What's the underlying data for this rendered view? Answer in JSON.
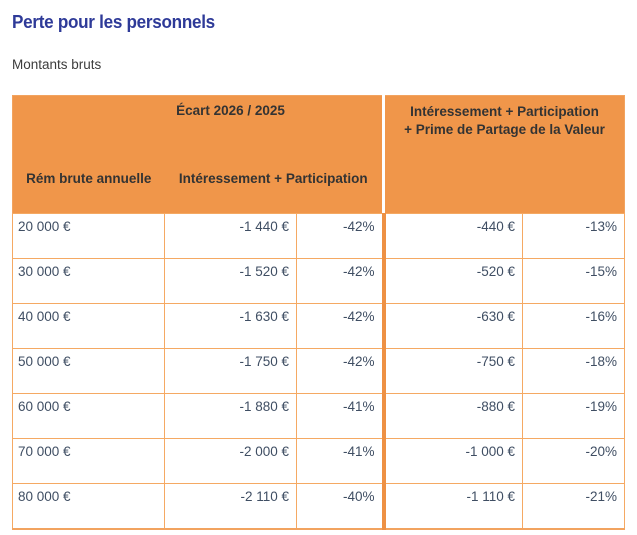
{
  "page": {
    "title": "Perte pour les personnels",
    "subtitle": "Montants bruts"
  },
  "colors": {
    "header_orange": "#F0964A",
    "grid_orange": "#F5A963",
    "thick_divider_orange": "#EE9144",
    "title_blue": "#2E3A98",
    "body_text_blue_gray": "#3F4E63",
    "header_text": "#333333"
  },
  "table": {
    "span_header": "Écart 2026 / 2025",
    "columns": {
      "col1": "Rém brute annuelle",
      "group1": "Intéressement + Participation",
      "group2_line1": "Intéressement + Participation",
      "group2_line2": "+ Prime de Partage de la Valeur"
    },
    "rows": [
      {
        "rem": "20 000 €",
        "ip_amount": "-1 440 €",
        "ip_pct": "-42%",
        "ippv_amount": "-440 €",
        "ippv_pct": "-13%"
      },
      {
        "rem": "30 000 €",
        "ip_amount": "-1 520 €",
        "ip_pct": "-42%",
        "ippv_amount": "-520 €",
        "ippv_pct": "-15%"
      },
      {
        "rem": "40 000 €",
        "ip_amount": "-1 630 €",
        "ip_pct": "-42%",
        "ippv_amount": "-630 €",
        "ippv_pct": "-16%"
      },
      {
        "rem": "50 000 €",
        "ip_amount": "-1 750 €",
        "ip_pct": "-42%",
        "ippv_amount": "-750 €",
        "ippv_pct": "-18%"
      },
      {
        "rem": "60 000 €",
        "ip_amount": "-1 880 €",
        "ip_pct": "-41%",
        "ippv_amount": "-880 €",
        "ippv_pct": "-19%"
      },
      {
        "rem": "70 000 €",
        "ip_amount": "-2 000 €",
        "ip_pct": "-41%",
        "ippv_amount": "-1 000 €",
        "ippv_pct": "-20%"
      },
      {
        "rem": "80 000 €",
        "ip_amount": "-2 110 €",
        "ip_pct": "-40%",
        "ippv_amount": "-1 110 €",
        "ippv_pct": "-21%"
      }
    ]
  }
}
